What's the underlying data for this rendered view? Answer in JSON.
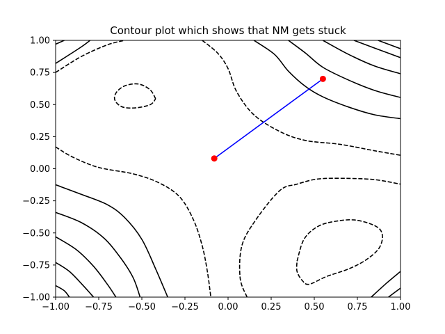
{
  "chart_data": {
    "type": "contour",
    "title": "Contour plot which shows that NM gets stuck",
    "xlabel": "",
    "ylabel": "",
    "xlim": [
      -1.0,
      1.0
    ],
    "ylim": [
      -1.0,
      1.0
    ],
    "grid": false,
    "xticks": [
      {
        "value": -1.0,
        "label": "−1.00"
      },
      {
        "value": -0.75,
        "label": "−0.75"
      },
      {
        "value": -0.5,
        "label": "−0.50"
      },
      {
        "value": -0.25,
        "label": "−0.25"
      },
      {
        "value": 0.0,
        "label": "0.00"
      },
      {
        "value": 0.25,
        "label": "0.25"
      },
      {
        "value": 0.5,
        "label": "0.50"
      },
      {
        "value": 0.75,
        "label": "0.75"
      },
      {
        "value": 1.0,
        "label": "1.00"
      }
    ],
    "yticks": [
      {
        "value": -1.0,
        "label": "−1.00"
      },
      {
        "value": -0.75,
        "label": "−0.75"
      },
      {
        "value": -0.5,
        "label": "−0.50"
      },
      {
        "value": -0.25,
        "label": "−0.25"
      },
      {
        "value": 0.0,
        "label": "0.00"
      },
      {
        "value": 0.25,
        "label": "0.25"
      },
      {
        "value": 0.5,
        "label": "0.50"
      },
      {
        "value": 0.75,
        "label": "0.75"
      },
      {
        "value": 1.0,
        "label": "1.00"
      }
    ],
    "contours": [
      {
        "style": "dashed",
        "points": [
          [
            -0.42,
            0.545
          ],
          [
            -0.452,
            0.615
          ],
          [
            -0.52,
            0.66
          ],
          [
            -0.6,
            0.645
          ],
          [
            -0.65,
            0.59
          ],
          [
            -0.655,
            0.53
          ],
          [
            -0.61,
            0.48
          ],
          [
            -0.53,
            0.475
          ],
          [
            -0.45,
            0.5
          ],
          [
            -0.42,
            0.545
          ]
        ]
      },
      {
        "style": "dashed",
        "points": [
          [
            -1.0,
            0.75
          ],
          [
            -0.85,
            0.875
          ],
          [
            -0.7,
            0.965
          ],
          [
            -0.6,
            1.0
          ]
        ]
      },
      {
        "style": "dashed",
        "points": [
          [
            -0.15,
            1.0
          ],
          [
            -0.06,
            0.9
          ],
          [
            0.0,
            0.78
          ],
          [
            0.05,
            0.6
          ],
          [
            0.15,
            0.42
          ],
          [
            0.3,
            0.29
          ],
          [
            0.45,
            0.22
          ],
          [
            0.65,
            0.19
          ],
          [
            0.85,
            0.14
          ],
          [
            1.0,
            0.105
          ]
        ]
      },
      {
        "style": "dashed",
        "points": [
          [
            -1.0,
            0.17
          ],
          [
            -0.9,
            0.09
          ],
          [
            -0.75,
            0.01
          ],
          [
            -0.55,
            -0.04
          ],
          [
            -0.4,
            -0.11
          ],
          [
            -0.28,
            -0.22
          ],
          [
            -0.2,
            -0.4
          ],
          [
            -0.15,
            -0.6
          ],
          [
            -0.12,
            -0.8
          ],
          [
            -0.1,
            -1.0
          ]
        ]
      },
      {
        "style": "dashed",
        "points": [
          [
            0.11,
            -1.0
          ],
          [
            0.07,
            -0.85
          ],
          [
            0.08,
            -0.6
          ],
          [
            0.16,
            -0.4
          ],
          [
            0.3,
            -0.17
          ],
          [
            0.4,
            -0.12
          ],
          [
            0.52,
            -0.08
          ],
          [
            0.68,
            -0.075
          ],
          [
            0.85,
            -0.085
          ],
          [
            1.0,
            -0.12
          ]
        ]
      },
      {
        "style": "dashed",
        "points": [
          [
            0.4,
            -0.72
          ],
          [
            0.44,
            -0.55
          ],
          [
            0.52,
            -0.45
          ],
          [
            0.62,
            -0.41
          ],
          [
            0.74,
            -0.4
          ],
          [
            0.86,
            -0.45
          ],
          [
            0.895,
            -0.52
          ],
          [
            0.875,
            -0.62
          ],
          [
            0.8,
            -0.71
          ],
          [
            0.7,
            -0.78
          ],
          [
            0.57,
            -0.84
          ],
          [
            0.47,
            -0.9
          ],
          [
            0.43,
            -0.87
          ],
          [
            0.4,
            -0.8
          ],
          [
            0.4,
            -0.72
          ]
        ]
      },
      {
        "style": "solid",
        "points": [
          [
            -1.0,
            0.82
          ],
          [
            -0.85,
            0.95
          ],
          [
            -0.8,
            1.0
          ]
        ]
      },
      {
        "style": "solid",
        "points": [
          [
            -1.0,
            0.97
          ],
          [
            -0.95,
            1.0
          ]
        ]
      },
      {
        "style": "solid",
        "points": [
          [
            0.15,
            1.0
          ],
          [
            0.27,
            0.89
          ],
          [
            0.35,
            0.76
          ],
          [
            0.45,
            0.64
          ],
          [
            0.55,
            0.56
          ],
          [
            0.7,
            0.48
          ],
          [
            0.85,
            0.42
          ],
          [
            1.0,
            0.39
          ]
        ]
      },
      {
        "style": "solid",
        "points": [
          [
            0.35,
            1.0
          ],
          [
            0.45,
            0.9
          ],
          [
            0.55,
            0.79
          ],
          [
            0.7,
            0.69
          ],
          [
            0.85,
            0.61
          ],
          [
            1.0,
            0.555
          ]
        ]
      },
      {
        "style": "solid",
        "points": [
          [
            0.55,
            1.0
          ],
          [
            0.7,
            0.89
          ],
          [
            0.85,
            0.8
          ],
          [
            1.0,
            0.74
          ]
        ]
      },
      {
        "style": "solid",
        "points": [
          [
            0.73,
            1.0
          ],
          [
            0.85,
            0.94
          ],
          [
            1.0,
            0.865
          ]
        ]
      },
      {
        "style": "solid",
        "points": [
          [
            0.87,
            1.0
          ],
          [
            1.0,
            0.935
          ]
        ]
      },
      {
        "style": "solid",
        "points": [
          [
            -1.0,
            -0.125
          ],
          [
            -0.85,
            -0.2
          ],
          [
            -0.7,
            -0.28
          ],
          [
            -0.6,
            -0.38
          ],
          [
            -0.5,
            -0.55
          ],
          [
            -0.42,
            -0.78
          ],
          [
            -0.35,
            -1.0
          ]
        ]
      },
      {
        "style": "solid",
        "points": [
          [
            -1.0,
            -0.34
          ],
          [
            -0.85,
            -0.42
          ],
          [
            -0.72,
            -0.54
          ],
          [
            -0.62,
            -0.7
          ],
          [
            -0.55,
            -0.85
          ],
          [
            -0.51,
            -1.0
          ]
        ]
      },
      {
        "style": "solid",
        "points": [
          [
            -1.0,
            -0.53
          ],
          [
            -0.88,
            -0.63
          ],
          [
            -0.78,
            -0.76
          ],
          [
            -0.7,
            -0.9
          ],
          [
            -0.65,
            -1.0
          ]
        ]
      },
      {
        "style": "solid",
        "points": [
          [
            -1.0,
            -0.73
          ],
          [
            -0.92,
            -0.8
          ],
          [
            -0.84,
            -0.91
          ],
          [
            -0.78,
            -1.0
          ]
        ]
      },
      {
        "style": "solid",
        "points": [
          [
            -1.0,
            -0.91
          ],
          [
            -0.95,
            -0.95
          ],
          [
            -0.92,
            -1.0
          ]
        ]
      },
      {
        "style": "solid",
        "points": [
          [
            0.83,
            -1.0
          ],
          [
            0.92,
            -0.89
          ],
          [
            1.0,
            -0.8
          ]
        ]
      },
      {
        "style": "solid",
        "points": [
          [
            0.93,
            -1.0
          ],
          [
            1.0,
            -0.93
          ]
        ]
      }
    ],
    "path": {
      "color": "#0000ff",
      "x": [
        0.55,
        -0.08
      ],
      "y": [
        0.7,
        0.08
      ]
    },
    "points": {
      "color": "#ff0000",
      "x": [
        0.55,
        -0.08
      ],
      "y": [
        0.7,
        0.08
      ]
    },
    "colors": {
      "contour": "#000000",
      "axes": "#000000",
      "background": "#ffffff"
    }
  }
}
